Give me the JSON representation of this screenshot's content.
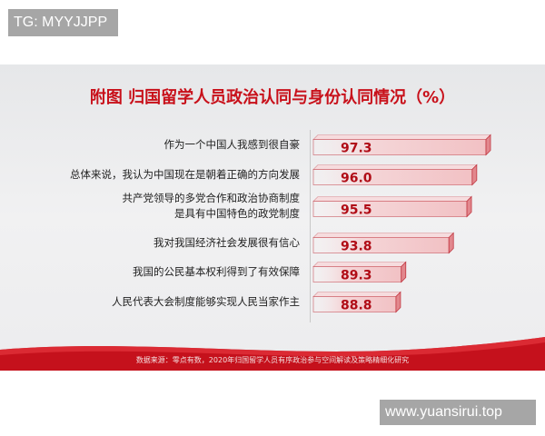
{
  "watermarks": {
    "top_left": "TG: MYYJJPP",
    "bottom_right": "www.yuansirui.top"
  },
  "colors": {
    "title": "#c8101a",
    "bar_fill": "#f2c1c4",
    "bar_edge": "#c0353f",
    "value_text": "#b00c16",
    "footer_red": "#c5111c"
  },
  "chart_data": {
    "type": "bar",
    "orientation": "horizontal",
    "title": "附图  归国留学人员政治认同与身份认同情况（%）",
    "categories": [
      [
        "作为一个中国人我感到很自豪"
      ],
      [
        "总体来说，我认为中国现在是朝着正确的方向发展"
      ],
      [
        "共产党领导的多党合作和政治协商制度",
        "是具有中国特色的政党制度"
      ],
      [
        "我对我国经济社会发展很有信心"
      ],
      [
        "我国的公民基本权利得到了有效保障"
      ],
      [
        "人民代表大会制度能够实现人民当家作主"
      ]
    ],
    "values": [
      97.3,
      96.0,
      95.5,
      93.8,
      89.3,
      88.8
    ],
    "value_labels": [
      "97.3",
      "96.0",
      "95.5",
      "93.8",
      "89.3",
      "88.8"
    ],
    "xlim": [
      81,
      98
    ],
    "grid": false,
    "legend": "none",
    "source": "数据来源：零点有数，2020年归国留学人员有序政治参与空间解读及策略精细化研究"
  }
}
